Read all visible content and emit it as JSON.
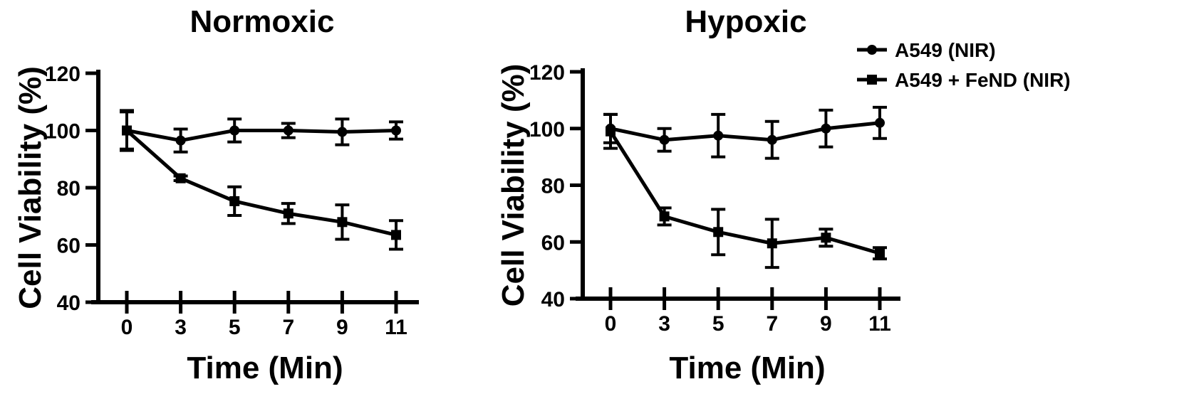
{
  "chart_data": [
    {
      "type": "line",
      "title": "Normoxic",
      "xlabel": "Time (Min)",
      "ylabel": "Cell Viability (%)",
      "categories": [
        "0",
        "3",
        "5",
        "7",
        "9",
        "11"
      ],
      "yticks": [
        "40",
        "60",
        "80",
        "100",
        "120"
      ],
      "ylim": [
        40,
        120
      ],
      "grid": false,
      "series": [
        {
          "name": "A549 (NIR)",
          "marker": "circle",
          "values": [
            100,
            96.5,
            100,
            100,
            99.5,
            100
          ],
          "errors": [
            7,
            4,
            4,
            2.5,
            4.5,
            3
          ]
        },
        {
          "name": "A549 + FeND (NIR)",
          "marker": "square",
          "values": [
            100,
            83.3,
            75.3,
            71,
            68,
            63.5
          ],
          "errors": [
            6.5,
            0.8,
            5,
            3.5,
            6,
            5
          ]
        }
      ]
    },
    {
      "type": "line",
      "title": "Hypoxic",
      "xlabel": "Time (Min)",
      "ylabel": "Cell Viability (%)",
      "categories": [
        "0",
        "3",
        "5",
        "7",
        "9",
        "11"
      ],
      "yticks": [
        "40",
        "60",
        "80",
        "100",
        "120"
      ],
      "ylim": [
        40,
        120
      ],
      "grid": false,
      "series": [
        {
          "name": "A549 (NIR)",
          "marker": "circle",
          "values": [
            100,
            96,
            97.5,
            96,
            100,
            102
          ],
          "errors": [
            5,
            4,
            7.5,
            6.5,
            6.5,
            5.5
          ]
        },
        {
          "name": "A549 + FeND (NIR)",
          "marker": "square",
          "values": [
            99,
            69,
            63.5,
            59.5,
            61.5,
            56
          ],
          "errors": [
            6,
            3,
            8,
            8.5,
            3,
            2
          ]
        }
      ]
    }
  ],
  "legend": {
    "placement": "top-right",
    "entries": [
      {
        "label": "A549 (NIR)",
        "marker": "circle"
      },
      {
        "label": "A549 + FeND (NIR)",
        "marker": "square"
      }
    ]
  },
  "colors": {
    "line": "#000000",
    "background": "#ffffff"
  }
}
